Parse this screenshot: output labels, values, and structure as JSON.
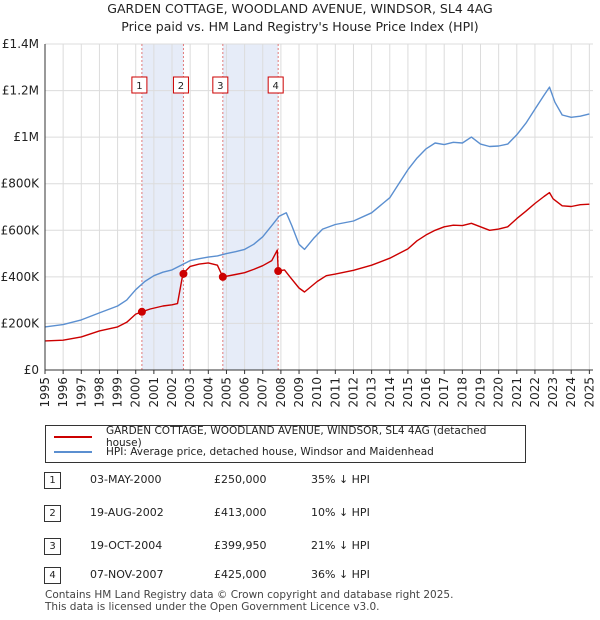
{
  "chart_data": {
    "type": "line",
    "title": "GARDEN COTTAGE, WOODLAND AVENUE, WINDSOR, SL4 4AG",
    "subtitle": "Price paid vs. HM Land Registry's House Price Index (HPI)",
    "xlabel": "",
    "ylabel": "",
    "xlim": [
      1995,
      2025.2
    ],
    "ylim": [
      0,
      1400000
    ],
    "y_ticks": [
      {
        "value": 0,
        "label": "£0"
      },
      {
        "value": 200000,
        "label": "£200K"
      },
      {
        "value": 400000,
        "label": "£400K"
      },
      {
        "value": 600000,
        "label": "£600K"
      },
      {
        "value": 800000,
        "label": "£800K"
      },
      {
        "value": 1000000,
        "label": "£1M"
      },
      {
        "value": 1200000,
        "label": "£1.2M"
      },
      {
        "value": 1400000,
        "label": "£1.4M"
      }
    ],
    "x_ticks": [
      "1995",
      "1996",
      "1997",
      "1998",
      "1999",
      "2000",
      "2001",
      "2002",
      "2003",
      "2004",
      "2005",
      "2006",
      "2007",
      "2008",
      "2009",
      "2010",
      "2011",
      "2012",
      "2013",
      "2014",
      "2015",
      "2016",
      "2017",
      "2018",
      "2019",
      "2020",
      "2021",
      "2022",
      "2023",
      "2024",
      "2025"
    ],
    "series": [
      {
        "name": "GARDEN COTTAGE, WOODLAND AVENUE, WINDSOR, SL4 4AG (detached house)",
        "color": "#cc0000",
        "points": [
          [
            1995.0,
            125000
          ],
          [
            1996.0,
            128000
          ],
          [
            1997.0,
            142000
          ],
          [
            1998.0,
            168000
          ],
          [
            1999.0,
            185000
          ],
          [
            1999.5,
            205000
          ],
          [
            2000.0,
            240000
          ],
          [
            2000.34,
            250000
          ],
          [
            2000.8,
            262000
          ],
          [
            2001.5,
            275000
          ],
          [
            2002.0,
            280000
          ],
          [
            2002.3,
            285000
          ],
          [
            2002.6,
            413000
          ],
          [
            2003.0,
            445000
          ],
          [
            2003.5,
            455000
          ],
          [
            2004.0,
            460000
          ],
          [
            2004.5,
            450000
          ],
          [
            2004.8,
            399950
          ],
          [
            2005.5,
            410000
          ],
          [
            2006.0,
            418000
          ],
          [
            2006.5,
            432000
          ],
          [
            2007.0,
            448000
          ],
          [
            2007.5,
            470000
          ],
          [
            2007.8,
            515000
          ],
          [
            2007.85,
            425000
          ],
          [
            2008.2,
            430000
          ],
          [
            2008.5,
            400000
          ],
          [
            2009.0,
            352000
          ],
          [
            2009.3,
            335000
          ],
          [
            2010.0,
            380000
          ],
          [
            2010.5,
            405000
          ],
          [
            2011.0,
            412000
          ],
          [
            2012.0,
            428000
          ],
          [
            2013.0,
            450000
          ],
          [
            2014.0,
            480000
          ],
          [
            2015.0,
            520000
          ],
          [
            2015.5,
            555000
          ],
          [
            2016.0,
            580000
          ],
          [
            2016.5,
            600000
          ],
          [
            2017.0,
            615000
          ],
          [
            2017.5,
            622000
          ],
          [
            2018.0,
            620000
          ],
          [
            2018.5,
            630000
          ],
          [
            2019.0,
            615000
          ],
          [
            2019.5,
            600000
          ],
          [
            2020.0,
            605000
          ],
          [
            2020.5,
            615000
          ],
          [
            2021.0,
            650000
          ],
          [
            2021.5,
            682000
          ],
          [
            2022.0,
            715000
          ],
          [
            2022.5,
            745000
          ],
          [
            2022.8,
            762000
          ],
          [
            2023.0,
            735000
          ],
          [
            2023.5,
            705000
          ],
          [
            2024.0,
            702000
          ],
          [
            2024.5,
            710000
          ],
          [
            2025.0,
            712000
          ]
        ]
      },
      {
        "name": "HPI: Average price, detached house, Windsor and Maidenhead",
        "color": "#5b8fd0",
        "points": [
          [
            1995.0,
            185000
          ],
          [
            1996.0,
            195000
          ],
          [
            1997.0,
            215000
          ],
          [
            1998.0,
            245000
          ],
          [
            1999.0,
            275000
          ],
          [
            1999.5,
            300000
          ],
          [
            2000.0,
            345000
          ],
          [
            2000.5,
            380000
          ],
          [
            2001.0,
            405000
          ],
          [
            2001.5,
            420000
          ],
          [
            2002.0,
            430000
          ],
          [
            2002.5,
            450000
          ],
          [
            2003.0,
            470000
          ],
          [
            2003.5,
            478000
          ],
          [
            2004.0,
            485000
          ],
          [
            2004.5,
            490000
          ],
          [
            2005.0,
            500000
          ],
          [
            2005.5,
            508000
          ],
          [
            2006.0,
            518000
          ],
          [
            2006.5,
            540000
          ],
          [
            2007.0,
            572000
          ],
          [
            2007.5,
            620000
          ],
          [
            2007.9,
            660000
          ],
          [
            2008.3,
            675000
          ],
          [
            2008.6,
            620000
          ],
          [
            2009.0,
            540000
          ],
          [
            2009.3,
            518000
          ],
          [
            2009.8,
            565000
          ],
          [
            2010.3,
            605000
          ],
          [
            2011.0,
            625000
          ],
          [
            2012.0,
            640000
          ],
          [
            2013.0,
            675000
          ],
          [
            2014.0,
            740000
          ],
          [
            2014.5,
            800000
          ],
          [
            2015.0,
            860000
          ],
          [
            2015.5,
            910000
          ],
          [
            2016.0,
            950000
          ],
          [
            2016.5,
            975000
          ],
          [
            2017.0,
            968000
          ],
          [
            2017.5,
            978000
          ],
          [
            2018.0,
            975000
          ],
          [
            2018.5,
            1000000
          ],
          [
            2019.0,
            970000
          ],
          [
            2019.5,
            960000
          ],
          [
            2020.0,
            962000
          ],
          [
            2020.5,
            970000
          ],
          [
            2021.0,
            1010000
          ],
          [
            2021.5,
            1060000
          ],
          [
            2022.0,
            1120000
          ],
          [
            2022.5,
            1180000
          ],
          [
            2022.8,
            1215000
          ],
          [
            2023.1,
            1150000
          ],
          [
            2023.5,
            1095000
          ],
          [
            2024.0,
            1085000
          ],
          [
            2024.5,
            1090000
          ],
          [
            2025.0,
            1100000
          ]
        ]
      }
    ],
    "sales": [
      {
        "num": "1",
        "date": "03-MAY-2000",
        "price": "£250,000",
        "hpi": "35% ↓ HPI",
        "x": 2000.34,
        "y": 250000
      },
      {
        "num": "2",
        "date": "19-AUG-2002",
        "price": "£413,000",
        "hpi": "10% ↓ HPI",
        "x": 2002.63,
        "y": 413000
      },
      {
        "num": "3",
        "date": "19-OCT-2004",
        "price": "£399,950",
        "hpi": "21% ↓ HPI",
        "x": 2004.8,
        "y": 399950
      },
      {
        "num": "4",
        "date": "07-NOV-2007",
        "price": "£425,000",
        "hpi": "36% ↓ HPI",
        "x": 2007.85,
        "y": 425000
      }
    ],
    "shaded_periods": [
      [
        2000.34,
        2002.63
      ],
      [
        2004.8,
        2007.85
      ]
    ],
    "grid": true,
    "legend_position": "bottom"
  },
  "legend": [
    {
      "label": "GARDEN COTTAGE, WOODLAND AVENUE, WINDSOR, SL4 4AG (detached house)",
      "color": "#cc0000"
    },
    {
      "label": "HPI: Average price, detached house, Windsor and Maidenhead",
      "color": "#5b8fd0"
    }
  ],
  "footer": {
    "line1": "Contains HM Land Registry data © Crown copyright and database right 2025.",
    "line2": "This data is licensed under the Open Government Licence v3.0."
  }
}
